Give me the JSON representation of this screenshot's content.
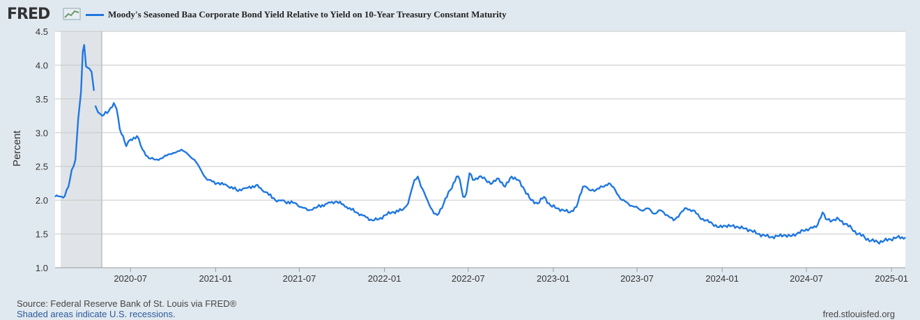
{
  "header": {
    "logo_text": "FRED",
    "legend_label": "Moody's Seasoned Baa Corporate Bond Yield Relative to Yield on 10-Year Treasury Constant Maturity",
    "series_color": "#1f77e0"
  },
  "footer": {
    "source": "Source: Federal Reserve Bank of St. Louis via FRED®",
    "note": "Shaded areas indicate U.S. recessions.",
    "url": "fred.stlouisfed.org"
  },
  "chart_data": {
    "type": "line",
    "title": "Moody's Seasoned Baa Corporate Bond Yield Relative to Yield on 10-Year Treasury Constant Maturity",
    "xlabel": "",
    "ylabel": "Percent",
    "ylim": [
      1.0,
      4.5
    ],
    "xlim": [
      "2020-01-20",
      "2025-01-31"
    ],
    "yticks": [
      "1.0",
      "1.5",
      "2.0",
      "2.5",
      "3.0",
      "3.5",
      "4.0",
      "4.5"
    ],
    "xticks": [
      {
        "date": "2020-07-01",
        "label": "2020-07"
      },
      {
        "date": "2021-01-01",
        "label": "2021-01"
      },
      {
        "date": "2021-07-01",
        "label": "2021-07"
      },
      {
        "date": "2022-01-01",
        "label": "2022-01"
      },
      {
        "date": "2022-07-01",
        "label": "2022-07"
      },
      {
        "date": "2023-01-01",
        "label": "2023-01"
      },
      {
        "date": "2023-07-01",
        "label": "2023-07"
      },
      {
        "date": "2024-01-01",
        "label": "2024-01"
      },
      {
        "date": "2024-07-01",
        "label": "2024-07"
      },
      {
        "date": "2025-01-01",
        "label": "2025-01"
      }
    ],
    "recession": {
      "start": "2020-02-01",
      "end": "2020-04-30",
      "color": "#e0e4e8"
    },
    "grid": true,
    "series": [
      {
        "name": "Moody's Seasoned Baa Corporate Bond Yield Relative to Yield on 10-Year Treasury Constant Maturity",
        "color": "#1f77e0",
        "segments": [
          [
            [
              "2020-01-20",
              2.05
            ],
            [
              "2020-02-10",
              2.06
            ],
            [
              "2020-02-18",
              2.2
            ],
            [
              "2020-02-25",
              2.45
            ],
            [
              "2020-03-04",
              2.6
            ],
            [
              "2020-03-10",
              3.2
            ],
            [
              "2020-03-16",
              3.6
            ],
            [
              "2020-03-20",
              4.2
            ],
            [
              "2020-03-23",
              4.3
            ],
            [
              "2020-03-27",
              3.98
            ],
            [
              "2020-04-03",
              3.95
            ],
            [
              "2020-04-08",
              3.9
            ],
            [
              "2020-04-13",
              3.62
            ]
          ],
          [
            [
              "2020-04-16",
              3.4
            ],
            [
              "2020-04-22",
              3.3
            ],
            [
              "2020-05-01",
              3.25
            ],
            [
              "2020-05-15",
              3.32
            ],
            [
              "2020-05-26",
              3.44
            ],
            [
              "2020-06-01",
              3.35
            ],
            [
              "2020-06-08",
              3.05
            ],
            [
              "2020-06-15",
              2.95
            ],
            [
              "2020-06-22",
              2.8
            ],
            [
              "2020-07-01",
              2.9
            ],
            [
              "2020-07-15",
              2.95
            ],
            [
              "2020-07-27",
              2.75
            ],
            [
              "2020-08-10",
              2.62
            ],
            [
              "2020-08-24",
              2.6
            ],
            [
              "2020-09-07",
              2.62
            ],
            [
              "2020-09-21",
              2.68
            ],
            [
              "2020-10-05",
              2.7
            ],
            [
              "2020-10-19",
              2.75
            ],
            [
              "2020-11-02",
              2.68
            ],
            [
              "2020-11-16",
              2.6
            ],
            [
              "2020-11-30",
              2.45
            ],
            [
              "2020-12-14",
              2.3
            ],
            [
              "2021-01-04",
              2.25
            ],
            [
              "2021-01-25",
              2.22
            ],
            [
              "2021-02-15",
              2.15
            ],
            [
              "2021-03-08",
              2.18
            ],
            [
              "2021-03-29",
              2.22
            ],
            [
              "2021-04-19",
              2.12
            ],
            [
              "2021-05-10",
              2.0
            ],
            [
              "2021-05-31",
              1.98
            ],
            [
              "2021-06-21",
              1.96
            ],
            [
              "2021-07-05",
              1.9
            ],
            [
              "2021-07-19",
              1.85
            ],
            [
              "2021-08-09",
              1.9
            ],
            [
              "2021-08-30",
              1.95
            ],
            [
              "2021-09-20",
              1.98
            ],
            [
              "2021-10-11",
              1.9
            ],
            [
              "2021-11-01",
              1.82
            ],
            [
              "2021-11-22",
              1.75
            ],
            [
              "2021-12-06",
              1.7
            ],
            [
              "2021-12-20",
              1.72
            ],
            [
              "2022-01-03",
              1.78
            ],
            [
              "2022-01-17",
              1.82
            ],
            [
              "2022-02-07",
              1.85
            ],
            [
              "2022-02-21",
              1.95
            ],
            [
              "2022-03-07",
              2.3
            ],
            [
              "2022-03-14",
              2.35
            ],
            [
              "2022-03-21",
              2.2
            ],
            [
              "2022-04-04",
              2.0
            ],
            [
              "2022-04-18",
              1.8
            ],
            [
              "2022-04-25",
              1.78
            ],
            [
              "2022-05-09",
              1.95
            ],
            [
              "2022-05-23",
              2.15
            ],
            [
              "2022-06-06",
              2.35
            ],
            [
              "2022-06-13",
              2.3
            ],
            [
              "2022-06-20",
              2.05
            ],
            [
              "2022-06-27",
              2.1
            ],
            [
              "2022-07-04",
              2.4
            ],
            [
              "2022-07-11",
              2.3
            ],
            [
              "2022-07-25",
              2.35
            ],
            [
              "2022-08-08",
              2.3
            ],
            [
              "2022-08-22",
              2.25
            ],
            [
              "2022-09-05",
              2.32
            ],
            [
              "2022-09-19",
              2.2
            ],
            [
              "2022-10-03",
              2.35
            ],
            [
              "2022-10-17",
              2.3
            ],
            [
              "2022-10-31",
              2.15
            ],
            [
              "2022-11-14",
              2.0
            ],
            [
              "2022-11-28",
              1.95
            ],
            [
              "2022-12-12",
              2.05
            ],
            [
              "2022-12-26",
              1.92
            ],
            [
              "2023-01-09",
              1.88
            ],
            [
              "2023-01-23",
              1.85
            ],
            [
              "2023-02-06",
              1.82
            ],
            [
              "2023-02-20",
              1.9
            ],
            [
              "2023-03-06",
              2.2
            ],
            [
              "2023-03-13",
              2.2
            ],
            [
              "2023-03-20",
              2.15
            ],
            [
              "2023-04-03",
              2.15
            ],
            [
              "2023-04-17",
              2.2
            ],
            [
              "2023-05-01",
              2.25
            ],
            [
              "2023-05-15",
              2.15
            ],
            [
              "2023-05-29",
              2.0
            ],
            [
              "2023-06-12",
              1.95
            ],
            [
              "2023-06-26",
              1.9
            ],
            [
              "2023-07-10",
              1.85
            ],
            [
              "2023-07-24",
              1.88
            ],
            [
              "2023-08-07",
              1.8
            ],
            [
              "2023-08-21",
              1.85
            ],
            [
              "2023-09-04",
              1.78
            ],
            [
              "2023-09-18",
              1.7
            ],
            [
              "2023-10-02",
              1.8
            ],
            [
              "2023-10-16",
              1.88
            ],
            [
              "2023-10-30",
              1.85
            ],
            [
              "2023-11-13",
              1.75
            ],
            [
              "2023-11-27",
              1.7
            ],
            [
              "2023-12-11",
              1.65
            ],
            [
              "2023-12-25",
              1.6
            ],
            [
              "2024-01-08",
              1.62
            ],
            [
              "2024-01-22",
              1.62
            ],
            [
              "2024-02-05",
              1.6
            ],
            [
              "2024-02-19",
              1.58
            ],
            [
              "2024-03-04",
              1.55
            ],
            [
              "2024-03-18",
              1.5
            ],
            [
              "2024-04-01",
              1.48
            ],
            [
              "2024-04-15",
              1.45
            ],
            [
              "2024-04-29",
              1.47
            ],
            [
              "2024-05-13",
              1.48
            ],
            [
              "2024-05-27",
              1.47
            ],
            [
              "2024-06-10",
              1.5
            ],
            [
              "2024-06-24",
              1.55
            ],
            [
              "2024-07-08",
              1.58
            ],
            [
              "2024-07-22",
              1.6
            ],
            [
              "2024-08-05",
              1.82
            ],
            [
              "2024-08-12",
              1.72
            ],
            [
              "2024-08-26",
              1.7
            ],
            [
              "2024-09-09",
              1.72
            ],
            [
              "2024-09-23",
              1.65
            ],
            [
              "2024-10-07",
              1.58
            ],
            [
              "2024-10-21",
              1.5
            ],
            [
              "2024-11-04",
              1.45
            ],
            [
              "2024-11-18",
              1.4
            ],
            [
              "2024-12-02",
              1.38
            ],
            [
              "2024-12-16",
              1.4
            ],
            [
              "2024-12-30",
              1.42
            ],
            [
              "2025-01-13",
              1.45
            ],
            [
              "2025-01-31",
              1.45
            ]
          ]
        ]
      }
    ]
  }
}
